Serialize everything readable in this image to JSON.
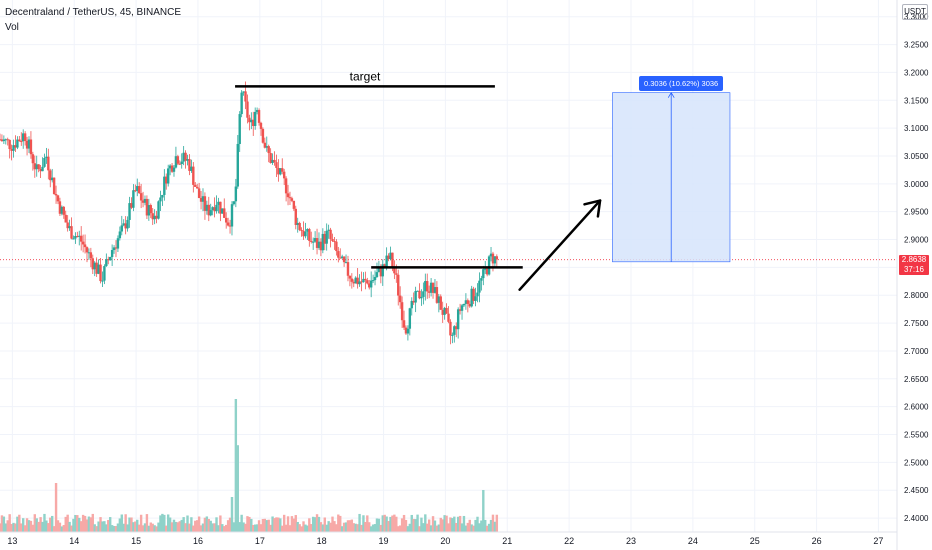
{
  "header": {
    "symbol_line": "Decentraland / TetherUS, 45, BINANCE",
    "indicator": "Vol"
  },
  "price_axis": {
    "unit": "USDT",
    "current_price": "2.8638",
    "countdown": "37:16"
  },
  "annotations": {
    "target_label": "target",
    "measure_label": "0.3036 (10.62%) 3036"
  },
  "colors": {
    "up": "#26a69a",
    "down": "#ef5350",
    "up_volume": "#8fd2c9",
    "down_volume": "#f7a9a7",
    "measure_fill": "#d6e4fc",
    "measure_line": "#2962ff",
    "price_line": "#f23645",
    "drawing": "#000000"
  },
  "chart_data": {
    "type": "candlestick",
    "symbol": "Decentraland / TetherUS",
    "interval": "45",
    "exchange": "BINANCE",
    "y_ticks": [
      2.4,
      2.45,
      2.5,
      2.55,
      2.6,
      2.65,
      2.7,
      2.75,
      2.8,
      2.85,
      2.9,
      2.95,
      3.0,
      3.05,
      3.1,
      3.15,
      3.2,
      3.25,
      3.3
    ],
    "y_tick_labels": [
      "2.4000",
      "2.4500",
      "2.5000",
      "2.5500",
      "2.6000",
      "2.6500",
      "2.7000",
      "2.7500",
      "2.8000",
      "2.8500",
      "2.9000",
      "2.9500",
      "3.0000",
      "3.0500",
      "3.1000",
      "3.1500",
      "3.2000",
      "3.2500",
      "3.3000"
    ],
    "x_ticks": [
      13,
      14,
      15,
      16,
      17,
      18,
      19,
      20,
      21,
      22,
      23,
      24,
      25,
      26,
      27
    ],
    "x_tick_labels": [
      "13",
      "14",
      "15",
      "16",
      "17",
      "18",
      "19",
      "20",
      "21",
      "22",
      "23",
      "24",
      "25",
      "26",
      "27"
    ],
    "y_range": [
      2.375,
      3.33
    ],
    "x_range": [
      12.8,
      27.3
    ],
    "grid": true,
    "current_price": 2.8638,
    "price_path": [
      [
        12.8,
        3.08
      ],
      [
        13.0,
        3.07
      ],
      [
        13.2,
        3.09
      ],
      [
        13.4,
        3.02
      ],
      [
        13.55,
        3.05
      ],
      [
        13.7,
        2.98
      ],
      [
        13.9,
        2.92
      ],
      [
        14.1,
        2.9
      ],
      [
        14.25,
        2.87
      ],
      [
        14.45,
        2.83
      ],
      [
        14.6,
        2.88
      ],
      [
        14.8,
        2.92
      ],
      [
        15.0,
        2.99
      ],
      [
        15.15,
        2.96
      ],
      [
        15.3,
        2.94
      ],
      [
        15.5,
        3.02
      ],
      [
        15.65,
        3.05
      ],
      [
        15.85,
        3.04
      ],
      [
        16.0,
        2.98
      ],
      [
        16.15,
        2.95
      ],
      [
        16.3,
        2.97
      ],
      [
        16.5,
        2.93
      ],
      [
        16.6,
        2.97
      ],
      [
        16.7,
        3.17
      ],
      [
        16.85,
        3.1
      ],
      [
        16.95,
        3.14
      ],
      [
        17.1,
        3.06
      ],
      [
        17.25,
        3.03
      ],
      [
        17.45,
        2.99
      ],
      [
        17.6,
        2.93
      ],
      [
        17.8,
        2.9
      ],
      [
        17.95,
        2.89
      ],
      [
        18.1,
        2.91
      ],
      [
        18.3,
        2.86
      ],
      [
        18.5,
        2.83
      ],
      [
        18.75,
        2.82
      ],
      [
        19.0,
        2.85
      ],
      [
        19.1,
        2.87
      ],
      [
        19.2,
        2.83
      ],
      [
        19.35,
        2.74
      ],
      [
        19.5,
        2.79
      ],
      [
        19.7,
        2.82
      ],
      [
        19.85,
        2.8
      ],
      [
        20.0,
        2.76
      ],
      [
        20.1,
        2.72
      ],
      [
        20.25,
        2.78
      ],
      [
        20.45,
        2.8
      ],
      [
        20.6,
        2.83
      ],
      [
        20.75,
        2.87
      ],
      [
        20.85,
        2.86
      ]
    ],
    "volume_spikes": [
      [
        16.6,
        0.95
      ],
      [
        16.65,
        0.62
      ],
      [
        13.7,
        0.35
      ],
      [
        20.6,
        0.3
      ],
      [
        16.55,
        0.25
      ]
    ],
    "drawings": {
      "target_line": {
        "x": [
          16.6,
          20.8
        ],
        "y": 3.175
      },
      "support_line": {
        "x": [
          18.8,
          21.25
        ],
        "y": 2.85
      },
      "arrow": {
        "from": [
          21.2,
          2.81
        ],
        "to": [
          22.5,
          2.97
        ]
      },
      "measure_box": {
        "x": [
          22.7,
          24.6
        ],
        "y": [
          2.86,
          3.1636
        ]
      },
      "measure_change": 0.3036,
      "measure_percent": 10.62
    }
  }
}
